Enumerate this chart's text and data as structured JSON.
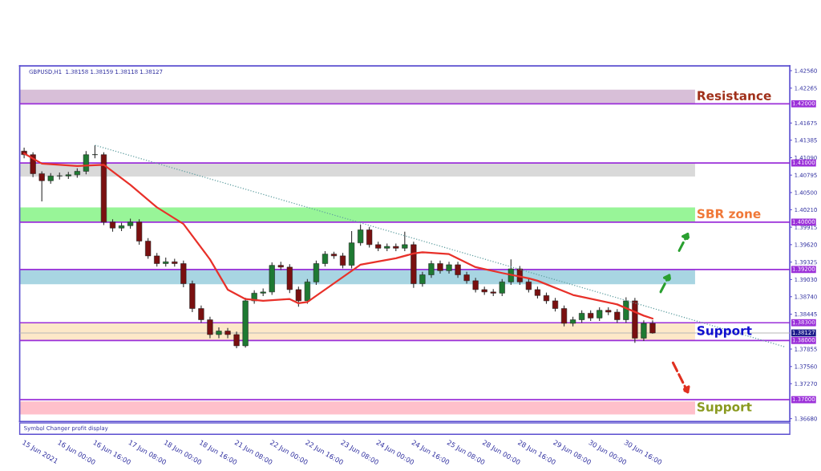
{
  "chart_data": {
    "type": "candlestick",
    "title": "GBPUSD,H1  1.38158 1.38159 1.38118 1.38127",
    "categories": [
      "15 Jun 2021",
      null,
      null,
      null,
      "16 Jun 00:00",
      null,
      null,
      null,
      "16 Jun 16:00",
      null,
      null,
      null,
      "17 Jun 08:00",
      null,
      null,
      null,
      "18 Jun 00:00",
      null,
      null,
      null,
      "18 Jun 16:00",
      null,
      null,
      null,
      "21 Jun 08:00",
      null,
      null,
      null,
      "22 Jun 00:00",
      null,
      null,
      null,
      "22 Jun 16:00",
      null,
      null,
      null,
      "23 Jun 08:00",
      null,
      null,
      null,
      "24 Jun 00:00",
      null,
      null,
      null,
      "24 Jun 16:00",
      null,
      null,
      null,
      "25 Jun 08:00",
      null,
      null,
      null,
      "28 Jun 00:00",
      null,
      null,
      null,
      "28 Jun 16:00",
      null,
      null,
      null,
      "29 Jun 08:00",
      null,
      null,
      null,
      "30 Jun 00:00",
      null,
      null,
      null,
      "30 Jun 16:00",
      null,
      null,
      null,
      null,
      null,
      null,
      null,
      null,
      null,
      null,
      null,
      null,
      null,
      null,
      null,
      null,
      null,
      null
    ],
    "ohlc": [
      [
        1.412,
        1.4126,
        1.4108,
        1.4114
      ],
      [
        1.4114,
        1.4118,
        1.4076,
        1.4082
      ],
      [
        1.4082,
        1.4086,
        1.4035,
        1.407
      ],
      [
        1.407,
        1.4083,
        1.4065,
        1.4078
      ],
      [
        1.4078,
        1.4084,
        1.4072,
        1.4078
      ],
      [
        1.4078,
        1.4085,
        1.4073,
        1.408
      ],
      [
        1.408,
        1.4091,
        1.4075,
        1.4086
      ],
      [
        1.4086,
        1.412,
        1.4081,
        1.4114
      ],
      [
        1.4114,
        1.413,
        1.4108,
        1.4114
      ],
      [
        1.4114,
        1.4118,
        1.3995,
        1.4
      ],
      [
        1.4,
        1.4005,
        1.3984,
        1.399
      ],
      [
        1.399,
        1.3999,
        1.3985,
        1.3994
      ],
      [
        1.3994,
        1.4006,
        1.3989,
        1.4
      ],
      [
        1.4,
        1.4005,
        1.3962,
        1.3968
      ],
      [
        1.3968,
        1.3973,
        1.3938,
        1.3943
      ],
      [
        1.3943,
        1.3948,
        1.3925,
        1.393
      ],
      [
        1.393,
        1.394,
        1.3925,
        1.3933
      ],
      [
        1.3933,
        1.3938,
        1.3925,
        1.393
      ],
      [
        1.393,
        1.3935,
        1.389,
        1.3896
      ],
      [
        1.3896,
        1.3901,
        1.3848,
        1.3854
      ],
      [
        1.3854,
        1.3859,
        1.383,
        1.3835
      ],
      [
        1.3835,
        1.384,
        1.3804,
        1.381
      ],
      [
        1.381,
        1.3822,
        1.3804,
        1.3816
      ],
      [
        1.3816,
        1.3821,
        1.3804,
        1.381
      ],
      [
        1.381,
        1.3815,
        1.3787,
        1.3791
      ],
      [
        1.3791,
        1.3872,
        1.3788,
        1.3867
      ],
      [
        1.3867,
        1.3885,
        1.3862,
        1.388
      ],
      [
        1.388,
        1.3888,
        1.3875,
        1.3882
      ],
      [
        1.3882,
        1.3932,
        1.3877,
        1.3927
      ],
      [
        1.3927,
        1.3933,
        1.3919,
        1.3924
      ],
      [
        1.3924,
        1.3929,
        1.388,
        1.3886
      ],
      [
        1.3886,
        1.3891,
        1.3857,
        1.3867
      ],
      [
        1.3867,
        1.3904,
        1.3862,
        1.3899
      ],
      [
        1.3899,
        1.3935,
        1.3894,
        1.393
      ],
      [
        1.393,
        1.3951,
        1.3925,
        1.3946
      ],
      [
        1.3946,
        1.395,
        1.3938,
        1.3943
      ],
      [
        1.3943,
        1.3948,
        1.3922,
        1.3927
      ],
      [
        1.3927,
        1.3985,
        1.3922,
        1.3965
      ],
      [
        1.3965,
        1.3996,
        1.396,
        1.3987
      ],
      [
        1.3987,
        1.3992,
        1.3957,
        1.3962
      ],
      [
        1.3962,
        1.3967,
        1.3951,
        1.3956
      ],
      [
        1.3956,
        1.3964,
        1.3951,
        1.3959
      ],
      [
        1.3959,
        1.3964,
        1.3951,
        1.3956
      ],
      [
        1.3956,
        1.3984,
        1.3951,
        1.3962
      ],
      [
        1.3962,
        1.3967,
        1.3889,
        1.3896
      ],
      [
        1.3896,
        1.3916,
        1.3891,
        1.3911
      ],
      [
        1.3911,
        1.3935,
        1.3906,
        1.393
      ],
      [
        1.393,
        1.3935,
        1.3913,
        1.3918
      ],
      [
        1.3918,
        1.3933,
        1.3913,
        1.3928
      ],
      [
        1.3928,
        1.3933,
        1.3906,
        1.3911
      ],
      [
        1.3911,
        1.3916,
        1.3896,
        1.3901
      ],
      [
        1.3901,
        1.3906,
        1.3881,
        1.3886
      ],
      [
        1.3886,
        1.3891,
        1.3877,
        1.3882
      ],
      [
        1.3882,
        1.3887,
        1.3875,
        1.388
      ],
      [
        1.388,
        1.3904,
        1.3875,
        1.3899
      ],
      [
        1.3899,
        1.3937,
        1.3894,
        1.3921
      ],
      [
        1.3921,
        1.3926,
        1.3894,
        1.3899
      ],
      [
        1.3899,
        1.3904,
        1.3881,
        1.3886
      ],
      [
        1.3886,
        1.3891,
        1.3871,
        1.3876
      ],
      [
        1.3876,
        1.3881,
        1.3862,
        1.3867
      ],
      [
        1.3867,
        1.3872,
        1.3849,
        1.3854
      ],
      [
        1.3854,
        1.3859,
        1.3824,
        1.3829
      ],
      [
        1.3829,
        1.384,
        1.3824,
        1.3835
      ],
      [
        1.3835,
        1.3851,
        1.383,
        1.3846
      ],
      [
        1.3846,
        1.3851,
        1.3833,
        1.3838
      ],
      [
        1.3838,
        1.3856,
        1.3833,
        1.3851
      ],
      [
        1.3851,
        1.3856,
        1.3843,
        1.3848
      ],
      [
        1.3848,
        1.3853,
        1.383,
        1.3835
      ],
      [
        1.3835,
        1.3873,
        1.383,
        1.3867
      ],
      [
        1.3867,
        1.3872,
        1.3796,
        1.3804
      ],
      [
        1.3804,
        1.3834,
        1.3799,
        1.3829
      ],
      [
        1.3829,
        1.3834,
        1.38118,
        1.38127
      ],
      null,
      null,
      null,
      null,
      null,
      null,
      null,
      null,
      null,
      null,
      null,
      null,
      null,
      null,
      null
    ],
    "series": [
      {
        "type": "line",
        "color": "#e8312a",
        "values": [
          1.4116,
          null,
          1.4099,
          null,
          null,
          null,
          1.4095,
          null,
          null,
          1.4097,
          null,
          null,
          1.4063,
          null,
          null,
          1.4025,
          null,
          null,
          1.3997,
          null,
          null,
          1.3937,
          null,
          1.3886,
          null,
          1.387,
          null,
          1.3867,
          null,
          null,
          1.387,
          1.3863,
          1.3865,
          null,
          null,
          null,
          null,
          null,
          1.3928,
          null,
          null,
          null,
          1.3939,
          null,
          1.3947,
          1.3949,
          null,
          null,
          1.3946,
          null,
          null,
          1.3924,
          null,
          null,
          1.3914,
          null,
          null,
          1.3905,
          1.3901,
          null,
          null,
          null,
          1.3877,
          null,
          null,
          null,
          null,
          1.3861,
          null,
          null,
          1.3842,
          1.3837,
          null,
          null,
          null,
          null,
          null,
          null,
          null,
          null,
          null,
          null,
          null,
          null,
          null,
          null,
          null
        ]
      },
      {
        "type": "line",
        "color": "#5f9ea0",
        "line_style": "dotted",
        "values": [
          null,
          null,
          null,
          null,
          null,
          null,
          null,
          null,
          1.413,
          null,
          null,
          null,
          null,
          null,
          null,
          null,
          null,
          null,
          null,
          null,
          null,
          null,
          null,
          null,
          null,
          null,
          null,
          null,
          null,
          null,
          null,
          null,
          null,
          null,
          null,
          null,
          null,
          null,
          null,
          null,
          null,
          null,
          null,
          null,
          null,
          null,
          null,
          null,
          null,
          null,
          null,
          null,
          null,
          null,
          null,
          null,
          null,
          null,
          null,
          null,
          null,
          null,
          null,
          null,
          null,
          null,
          null,
          null,
          null,
          null,
          null,
          null,
          null,
          null,
          null,
          null,
          null,
          null,
          null,
          null,
          null,
          null,
          null,
          null,
          null,
          null,
          1.3789
        ]
      }
    ],
    "ylim": [
      1.3663,
      1.4264
    ],
    "yticks": [
      {
        "value": 1.4256,
        "label": "1.42560"
      },
      {
        "value": 1.42265,
        "label": "1.42265"
      },
      {
        "value": 1.41675,
        "label": "1.41675"
      },
      {
        "value": 1.41385,
        "label": "1.41385"
      },
      {
        "value": 1.4109,
        "label": "1.41090"
      },
      {
        "value": 1.40795,
        "label": "1.40795"
      },
      {
        "value": 1.405,
        "label": "1.40500"
      },
      {
        "value": 1.4021,
        "label": "1.40210"
      },
      {
        "value": 1.39915,
        "label": "1.39915"
      },
      {
        "value": 1.3962,
        "label": "1.39620"
      },
      {
        "value": 1.39325,
        "label": "1.39325"
      },
      {
        "value": 1.3903,
        "label": "1.39030"
      },
      {
        "value": 1.3874,
        "label": "1.38740"
      },
      {
        "value": 1.38445,
        "label": "1.38445"
      },
      {
        "value": 1.37855,
        "label": "1.37855"
      },
      {
        "value": 1.3756,
        "label": "1.37560"
      },
      {
        "value": 1.3727,
        "label": "1.37270"
      },
      {
        "value": 1.3668,
        "label": "1.36680"
      }
    ],
    "ref_lines": [
      {
        "axis": "y",
        "value": 1.42,
        "label": "1.42000",
        "color": "#9b30d9"
      },
      {
        "axis": "y",
        "value": 1.41,
        "label": "1.41000",
        "color": "#9b30d9"
      },
      {
        "axis": "y",
        "value": 1.4,
        "label": "1.40000",
        "color": "#9b30d9"
      },
      {
        "axis": "y",
        "value": 1.392,
        "label": "1.39200",
        "color": "#9b30d9"
      },
      {
        "axis": "y",
        "value": 1.383,
        "label": "1.38300",
        "color": "#9b30d9"
      },
      {
        "axis": "y",
        "value": 1.38127,
        "label": "1.38127",
        "color": "#b8b8b8"
      },
      {
        "axis": "y",
        "value": 1.38,
        "label": "1.38000",
        "color": "#9b30d9"
      },
      {
        "axis": "y",
        "value": 1.37,
        "label": "1.37000",
        "color": "#9b30d9"
      }
    ],
    "bands": [
      {
        "axis": "y",
        "from": 1.42,
        "to": 1.4224,
        "color": "#d8bfd8",
        "label": "Resistance"
      },
      {
        "axis": "y",
        "from": 1.4077,
        "to": 1.41,
        "color": "#d9d9d9"
      },
      {
        "axis": "y",
        "from": 1.4,
        "to": 1.4025,
        "color": "#98f598",
        "label": "SBR zone"
      },
      {
        "axis": "y",
        "from": 1.3895,
        "to": 1.392,
        "color": "#a8d5e2"
      },
      {
        "axis": "y",
        "from": 1.38,
        "to": 1.383,
        "color": "#fde8c8",
        "label": "Support"
      },
      {
        "axis": "y",
        "from": 1.3675,
        "to": 1.3697,
        "color": "#ffc0cb",
        "label": "Support"
      }
    ],
    "annotations": [
      "Symbol Changer profit display"
    ]
  }
}
